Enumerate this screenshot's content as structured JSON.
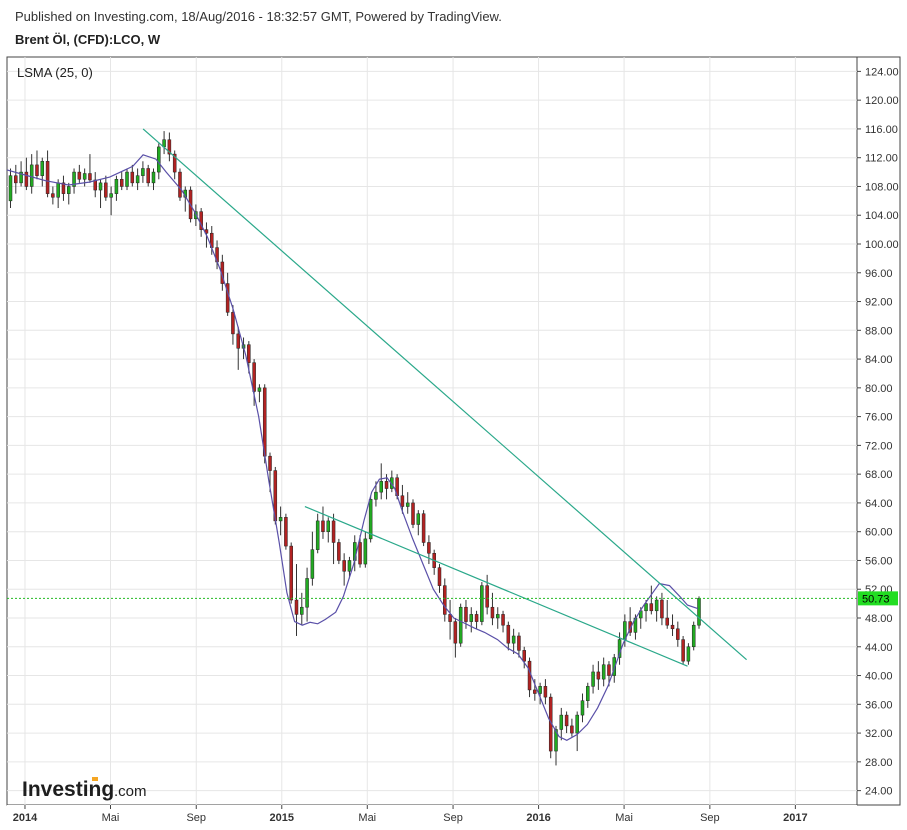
{
  "header": {
    "published": "Published on Investing.com, 18/Aug/2016 - 18:32:57 GMT, Powered by TradingView.",
    "symbol": "Brent Öl, (CFD):LCO, W"
  },
  "indicator_label": "LSMA (25, 0)",
  "logo": {
    "brand": "Investing",
    "domain": ".com"
  },
  "colors": {
    "up": "#22aa22",
    "down": "#b22222",
    "wick": "#333333",
    "lsma": "#5a50a8",
    "trendline": "#2aa88a",
    "price_line": "#22bb22",
    "price_label_bg": "#22dd22",
    "grid": "#e6e6e6",
    "logo_accent": "#f5a623"
  },
  "chart_data": {
    "type": "candlestick",
    "title": "Brent Öl, (CFD):LCO, W",
    "y_axis": {
      "min": 22,
      "max": 126,
      "ticks": [
        24,
        28,
        32,
        36,
        40,
        44,
        48,
        52,
        56,
        60,
        64,
        68,
        72,
        76,
        80,
        84,
        88,
        92,
        96,
        100,
        104,
        108,
        112,
        116,
        120,
        124
      ],
      "labels": [
        "24.00",
        "28.00",
        "32.00",
        "36.00",
        "40.00",
        "44.00",
        "48.00",
        "52.00",
        "56.00",
        "60.00",
        "64.00",
        "68.00",
        "72.00",
        "76.00",
        "80.00",
        "84.00",
        "88.00",
        "92.00",
        "96.00",
        "100.00",
        "104.00",
        "108.00",
        "112.00",
        "116.00",
        "120.00",
        "124.00"
      ]
    },
    "x_axis": {
      "min": 2013.93,
      "max": 2017.24,
      "ticks": [
        {
          "label": "2014",
          "x": 2014.0,
          "bold": true
        },
        {
          "label": "Mai",
          "x": 2014.333,
          "bold": false
        },
        {
          "label": "Sep",
          "x": 2014.667,
          "bold": false
        },
        {
          "label": "2015",
          "x": 2015.0,
          "bold": true
        },
        {
          "label": "Mai",
          "x": 2015.333,
          "bold": false
        },
        {
          "label": "Sep",
          "x": 2015.667,
          "bold": false
        },
        {
          "label": "2016",
          "x": 2016.0,
          "bold": true
        },
        {
          "label": "Mai",
          "x": 2016.333,
          "bold": false
        },
        {
          "label": "Sep",
          "x": 2016.667,
          "bold": false
        },
        {
          "label": "2017",
          "x": 2017.0,
          "bold": true
        }
      ]
    },
    "grid": true,
    "last_price": 50.73,
    "last_price_label": "50.73",
    "candles": [
      {
        "o": 106.0,
        "h": 110.5,
        "l": 105.0,
        "c": 109.5
      },
      {
        "o": 109.5,
        "h": 111.0,
        "l": 107.0,
        "c": 108.5
      },
      {
        "o": 108.5,
        "h": 111.5,
        "l": 108.0,
        "c": 110.0
      },
      {
        "o": 110.0,
        "h": 112.0,
        "l": 107.5,
        "c": 108.0
      },
      {
        "o": 108.0,
        "h": 112.5,
        "l": 107.0,
        "c": 111.0
      },
      {
        "o": 111.0,
        "h": 113.0,
        "l": 109.0,
        "c": 109.5
      },
      {
        "o": 109.5,
        "h": 112.0,
        "l": 108.0,
        "c": 111.5
      },
      {
        "o": 111.5,
        "h": 113.0,
        "l": 106.5,
        "c": 107.0
      },
      {
        "o": 107.0,
        "h": 108.0,
        "l": 105.5,
        "c": 106.5
      },
      {
        "o": 106.5,
        "h": 109.0,
        "l": 105.0,
        "c": 108.5
      },
      {
        "o": 108.5,
        "h": 109.5,
        "l": 106.0,
        "c": 107.0
      },
      {
        "o": 107.0,
        "h": 108.5,
        "l": 105.5,
        "c": 108.0
      },
      {
        "o": 108.0,
        "h": 110.5,
        "l": 107.0,
        "c": 110.0
      },
      {
        "o": 110.0,
        "h": 111.0,
        "l": 108.5,
        "c": 109.0
      },
      {
        "o": 109.0,
        "h": 110.5,
        "l": 108.0,
        "c": 109.8
      },
      {
        "o": 109.8,
        "h": 112.5,
        "l": 108.5,
        "c": 108.9
      },
      {
        "o": 108.9,
        "h": 110.0,
        "l": 106.5,
        "c": 107.5
      },
      {
        "o": 107.5,
        "h": 109.0,
        "l": 105.0,
        "c": 108.5
      },
      {
        "o": 108.5,
        "h": 109.5,
        "l": 106.0,
        "c": 106.5
      },
      {
        "o": 106.5,
        "h": 108.0,
        "l": 104.0,
        "c": 107.0
      },
      {
        "o": 107.0,
        "h": 109.5,
        "l": 106.0,
        "c": 109.0
      },
      {
        "o": 109.0,
        "h": 110.0,
        "l": 107.5,
        "c": 108.0
      },
      {
        "o": 108.0,
        "h": 110.5,
        "l": 107.5,
        "c": 110.0
      },
      {
        "o": 110.0,
        "h": 111.0,
        "l": 108.0,
        "c": 108.5
      },
      {
        "o": 108.5,
        "h": 110.5,
        "l": 107.5,
        "c": 109.5
      },
      {
        "o": 109.5,
        "h": 111.5,
        "l": 108.5,
        "c": 110.5
      },
      {
        "o": 110.5,
        "h": 111.0,
        "l": 108.0,
        "c": 108.5
      },
      {
        "o": 108.5,
        "h": 110.5,
        "l": 107.5,
        "c": 110.0
      },
      {
        "o": 110.0,
        "h": 114.0,
        "l": 109.0,
        "c": 113.5
      },
      {
        "o": 113.5,
        "h": 115.7,
        "l": 112.5,
        "c": 114.5
      },
      {
        "o": 114.5,
        "h": 115.5,
        "l": 111.5,
        "c": 112.5
      },
      {
        "o": 112.5,
        "h": 113.0,
        "l": 109.0,
        "c": 110.0
      },
      {
        "o": 110.0,
        "h": 110.5,
        "l": 106.0,
        "c": 106.5
      },
      {
        "o": 106.5,
        "h": 108.0,
        "l": 104.5,
        "c": 107.5
      },
      {
        "o": 107.5,
        "h": 108.0,
        "l": 103.0,
        "c": 103.5
      },
      {
        "o": 103.5,
        "h": 105.5,
        "l": 102.5,
        "c": 104.5
      },
      {
        "o": 104.5,
        "h": 105.0,
        "l": 101.0,
        "c": 102.0
      },
      {
        "o": 102.0,
        "h": 103.0,
        "l": 99.5,
        "c": 101.5
      },
      {
        "o": 101.5,
        "h": 102.5,
        "l": 98.5,
        "c": 99.5
      },
      {
        "o": 99.5,
        "h": 100.5,
        "l": 96.5,
        "c": 97.5
      },
      {
        "o": 97.5,
        "h": 98.5,
        "l": 93.5,
        "c": 94.5
      },
      {
        "o": 94.5,
        "h": 96.0,
        "l": 90.0,
        "c": 90.5
      },
      {
        "o": 90.5,
        "h": 91.5,
        "l": 86.0,
        "c": 87.5
      },
      {
        "o": 87.5,
        "h": 88.5,
        "l": 82.5,
        "c": 85.5
      },
      {
        "o": 85.5,
        "h": 87.0,
        "l": 84.0,
        "c": 86.0
      },
      {
        "o": 86.0,
        "h": 86.5,
        "l": 82.0,
        "c": 83.5
      },
      {
        "o": 83.5,
        "h": 84.0,
        "l": 77.5,
        "c": 79.5
      },
      {
        "o": 79.5,
        "h": 80.5,
        "l": 78.0,
        "c": 80.0
      },
      {
        "o": 80.0,
        "h": 80.5,
        "l": 69.5,
        "c": 70.5
      },
      {
        "o": 70.5,
        "h": 71.0,
        "l": 65.5,
        "c": 68.5
      },
      {
        "o": 68.5,
        "h": 69.0,
        "l": 61.0,
        "c": 61.5
      },
      {
        "o": 61.5,
        "h": 63.5,
        "l": 59.5,
        "c": 62.0
      },
      {
        "o": 62.0,
        "h": 62.5,
        "l": 57.5,
        "c": 58.0
      },
      {
        "o": 58.0,
        "h": 58.5,
        "l": 50.0,
        "c": 50.5
      },
      {
        "o": 50.5,
        "h": 55.5,
        "l": 45.5,
        "c": 48.5
      },
      {
        "o": 48.5,
        "h": 51.5,
        "l": 47.0,
        "c": 49.5
      },
      {
        "o": 49.5,
        "h": 55.0,
        "l": 47.5,
        "c": 53.5
      },
      {
        "o": 53.5,
        "h": 60.0,
        "l": 52.5,
        "c": 57.5
      },
      {
        "o": 57.5,
        "h": 62.5,
        "l": 57.0,
        "c": 61.5
      },
      {
        "o": 61.5,
        "h": 63.5,
        "l": 59.0,
        "c": 60.0
      },
      {
        "o": 60.0,
        "h": 62.0,
        "l": 58.5,
        "c": 61.5
      },
      {
        "o": 61.5,
        "h": 62.5,
        "l": 55.5,
        "c": 58.5
      },
      {
        "o": 58.5,
        "h": 59.0,
        "l": 55.5,
        "c": 56.0
      },
      {
        "o": 56.0,
        "h": 57.0,
        "l": 52.5,
        "c": 54.5
      },
      {
        "o": 54.5,
        "h": 56.5,
        "l": 53.5,
        "c": 56.0
      },
      {
        "o": 56.0,
        "h": 59.5,
        "l": 54.5,
        "c": 58.5
      },
      {
        "o": 58.5,
        "h": 59.5,
        "l": 55.0,
        "c": 55.5
      },
      {
        "o": 55.5,
        "h": 60.0,
        "l": 55.0,
        "c": 59.0
      },
      {
        "o": 59.0,
        "h": 65.0,
        "l": 58.5,
        "c": 64.5
      },
      {
        "o": 64.5,
        "h": 67.0,
        "l": 63.5,
        "c": 65.5
      },
      {
        "o": 65.5,
        "h": 69.5,
        "l": 64.5,
        "c": 67.0
      },
      {
        "o": 67.0,
        "h": 68.0,
        "l": 64.5,
        "c": 66.0
      },
      {
        "o": 66.0,
        "h": 68.5,
        "l": 65.5,
        "c": 67.5
      },
      {
        "o": 67.5,
        "h": 68.0,
        "l": 64.5,
        "c": 65.0
      },
      {
        "o": 65.0,
        "h": 66.5,
        "l": 62.5,
        "c": 63.5
      },
      {
        "o": 63.5,
        "h": 65.5,
        "l": 62.5,
        "c": 64.0
      },
      {
        "o": 64.0,
        "h": 64.5,
        "l": 60.5,
        "c": 61.0
      },
      {
        "o": 61.0,
        "h": 63.0,
        "l": 59.5,
        "c": 62.5
      },
      {
        "o": 62.5,
        "h": 63.0,
        "l": 58.0,
        "c": 58.5
      },
      {
        "o": 58.5,
        "h": 59.5,
        "l": 55.5,
        "c": 57.0
      },
      {
        "o": 57.0,
        "h": 57.5,
        "l": 54.0,
        "c": 55.0
      },
      {
        "o": 55.0,
        "h": 55.5,
        "l": 51.5,
        "c": 52.5
      },
      {
        "o": 52.5,
        "h": 53.5,
        "l": 47.5,
        "c": 48.5
      },
      {
        "o": 48.5,
        "h": 50.5,
        "l": 45.0,
        "c": 47.5
      },
      {
        "o": 47.5,
        "h": 48.0,
        "l": 42.5,
        "c": 44.5
      },
      {
        "o": 44.5,
        "h": 50.0,
        "l": 44.0,
        "c": 49.5
      },
      {
        "o": 49.5,
        "h": 50.5,
        "l": 46.5,
        "c": 47.5
      },
      {
        "o": 47.5,
        "h": 49.5,
        "l": 46.0,
        "c": 48.5
      },
      {
        "o": 48.5,
        "h": 49.0,
        "l": 46.5,
        "c": 47.5
      },
      {
        "o": 47.5,
        "h": 53.0,
        "l": 47.0,
        "c": 52.5
      },
      {
        "o": 52.5,
        "h": 54.0,
        "l": 48.5,
        "c": 49.5
      },
      {
        "o": 49.5,
        "h": 51.5,
        "l": 47.0,
        "c": 48.0
      },
      {
        "o": 48.0,
        "h": 49.5,
        "l": 46.5,
        "c": 48.5
      },
      {
        "o": 48.5,
        "h": 49.0,
        "l": 46.0,
        "c": 47.0
      },
      {
        "o": 47.0,
        "h": 47.5,
        "l": 43.5,
        "c": 44.5
      },
      {
        "o": 44.5,
        "h": 46.5,
        "l": 43.0,
        "c": 45.5
      },
      {
        "o": 45.5,
        "h": 46.0,
        "l": 42.5,
        "c": 43.5
      },
      {
        "o": 43.5,
        "h": 44.0,
        "l": 41.0,
        "c": 42.0
      },
      {
        "o": 42.0,
        "h": 42.5,
        "l": 37.0,
        "c": 38.0
      },
      {
        "o": 38.0,
        "h": 39.5,
        "l": 36.5,
        "c": 37.5
      },
      {
        "o": 37.5,
        "h": 39.0,
        "l": 36.0,
        "c": 38.5
      },
      {
        "o": 38.5,
        "h": 39.5,
        "l": 36.0,
        "c": 37.0
      },
      {
        "o": 37.0,
        "h": 37.5,
        "l": 28.5,
        "c": 29.5
      },
      {
        "o": 29.5,
        "h": 33.0,
        "l": 27.5,
        "c": 32.5
      },
      {
        "o": 32.5,
        "h": 35.5,
        "l": 31.0,
        "c": 34.5
      },
      {
        "o": 34.5,
        "h": 35.0,
        "l": 32.0,
        "c": 33.0
      },
      {
        "o": 33.0,
        "h": 34.0,
        "l": 31.5,
        "c": 32.0
      },
      {
        "o": 32.0,
        "h": 35.0,
        "l": 29.5,
        "c": 34.5
      },
      {
        "o": 34.5,
        "h": 37.5,
        "l": 33.5,
        "c": 36.5
      },
      {
        "o": 36.5,
        "h": 39.0,
        "l": 35.5,
        "c": 38.5
      },
      {
        "o": 38.5,
        "h": 41.5,
        "l": 37.5,
        "c": 40.5
      },
      {
        "o": 40.5,
        "h": 42.0,
        "l": 38.0,
        "c": 39.5
      },
      {
        "o": 39.5,
        "h": 42.5,
        "l": 38.5,
        "c": 41.5
      },
      {
        "o": 41.5,
        "h": 42.0,
        "l": 38.5,
        "c": 40.0
      },
      {
        "o": 40.0,
        "h": 43.0,
        "l": 39.0,
        "c": 42.5
      },
      {
        "o": 42.5,
        "h": 46.0,
        "l": 41.5,
        "c": 45.0
      },
      {
        "o": 45.0,
        "h": 48.5,
        "l": 44.0,
        "c": 47.5
      },
      {
        "o": 47.5,
        "h": 49.5,
        "l": 45.5,
        "c": 46.0
      },
      {
        "o": 46.0,
        "h": 48.5,
        "l": 45.0,
        "c": 48.0
      },
      {
        "o": 48.0,
        "h": 49.5,
        "l": 46.5,
        "c": 49.0
      },
      {
        "o": 49.0,
        "h": 50.5,
        "l": 47.5,
        "c": 50.0
      },
      {
        "o": 50.0,
        "h": 52.5,
        "l": 48.5,
        "c": 49.0
      },
      {
        "o": 49.0,
        "h": 51.0,
        "l": 47.5,
        "c": 50.5
      },
      {
        "o": 50.5,
        "h": 51.5,
        "l": 47.0,
        "c": 48.0
      },
      {
        "o": 48.0,
        "h": 50.5,
        "l": 46.5,
        "c": 47.0
      },
      {
        "o": 47.0,
        "h": 48.5,
        "l": 45.5,
        "c": 46.5
      },
      {
        "o": 46.5,
        "h": 47.5,
        "l": 44.0,
        "c": 45.0
      },
      {
        "o": 45.0,
        "h": 45.5,
        "l": 41.5,
        "c": 42.0
      },
      {
        "o": 42.0,
        "h": 44.5,
        "l": 41.5,
        "c": 44.0
      },
      {
        "o": 44.0,
        "h": 47.5,
        "l": 43.5,
        "c": 47.0
      },
      {
        "o": 47.0,
        "h": 51.0,
        "l": 46.5,
        "c": 50.73
      }
    ],
    "lsma": [
      {
        "x": 2013.93,
        "y": 110.3
      },
      {
        "x": 2014.0,
        "y": 109.6
      },
      {
        "x": 2014.08,
        "y": 108.8
      },
      {
        "x": 2014.17,
        "y": 108.2
      },
      {
        "x": 2014.25,
        "y": 108.6
      },
      {
        "x": 2014.33,
        "y": 109.3
      },
      {
        "x": 2014.42,
        "y": 110.8
      },
      {
        "x": 2014.46,
        "y": 112.4
      },
      {
        "x": 2014.51,
        "y": 111.8
      },
      {
        "x": 2014.55,
        "y": 110.0
      },
      {
        "x": 2014.61,
        "y": 107.5
      },
      {
        "x": 2014.66,
        "y": 104.5
      },
      {
        "x": 2014.71,
        "y": 101.0
      },
      {
        "x": 2014.76,
        "y": 96.5
      },
      {
        "x": 2014.81,
        "y": 91.0
      },
      {
        "x": 2014.86,
        "y": 84.5
      },
      {
        "x": 2014.91,
        "y": 76.0
      },
      {
        "x": 2014.95,
        "y": 67.0
      },
      {
        "x": 2014.99,
        "y": 58.5
      },
      {
        "x": 2015.02,
        "y": 51.5
      },
      {
        "x": 2015.05,
        "y": 47.5
      },
      {
        "x": 2015.08,
        "y": 47.0
      },
      {
        "x": 2015.11,
        "y": 47.4
      },
      {
        "x": 2015.14,
        "y": 47.2
      },
      {
        "x": 2015.17,
        "y": 47.8
      },
      {
        "x": 2015.21,
        "y": 48.8
      },
      {
        "x": 2015.24,
        "y": 51.0
      },
      {
        "x": 2015.28,
        "y": 55.5
      },
      {
        "x": 2015.32,
        "y": 61.5
      },
      {
        "x": 2015.35,
        "y": 65.5
      },
      {
        "x": 2015.38,
        "y": 67.3
      },
      {
        "x": 2015.41,
        "y": 67.5
      },
      {
        "x": 2015.44,
        "y": 66.0
      },
      {
        "x": 2015.47,
        "y": 62.8
      },
      {
        "x": 2015.51,
        "y": 59.0
      },
      {
        "x": 2015.55,
        "y": 55.5
      },
      {
        "x": 2015.59,
        "y": 52.0
      },
      {
        "x": 2015.63,
        "y": 49.8
      },
      {
        "x": 2015.67,
        "y": 48.0
      },
      {
        "x": 2015.71,
        "y": 47.3
      },
      {
        "x": 2015.75,
        "y": 46.6
      },
      {
        "x": 2015.79,
        "y": 46.0
      },
      {
        "x": 2015.84,
        "y": 45.0
      },
      {
        "x": 2015.88,
        "y": 43.8
      },
      {
        "x": 2015.92,
        "y": 43.0
      },
      {
        "x": 2015.96,
        "y": 41.0
      },
      {
        "x": 2016.0,
        "y": 37.5
      },
      {
        "x": 2016.04,
        "y": 34.0
      },
      {
        "x": 2016.08,
        "y": 31.5
      },
      {
        "x": 2016.11,
        "y": 31.0
      },
      {
        "x": 2016.15,
        "y": 31.8
      },
      {
        "x": 2016.19,
        "y": 33.2
      },
      {
        "x": 2016.23,
        "y": 35.5
      },
      {
        "x": 2016.27,
        "y": 38.5
      },
      {
        "x": 2016.3,
        "y": 41.5
      },
      {
        "x": 2016.33,
        "y": 44.5
      },
      {
        "x": 2016.37,
        "y": 47.5
      },
      {
        "x": 2016.41,
        "y": 49.8
      },
      {
        "x": 2016.44,
        "y": 51.3
      },
      {
        "x": 2016.47,
        "y": 52.8
      },
      {
        "x": 2016.51,
        "y": 52.5
      },
      {
        "x": 2016.55,
        "y": 51.0
      },
      {
        "x": 2016.58,
        "y": 49.8
      },
      {
        "x": 2016.62,
        "y": 49.3
      }
    ],
    "trendlines": [
      {
        "x1": 2014.46,
        "y1": 116.0,
        "x2": 2016.81,
        "y2": 42.2
      },
      {
        "x1": 2015.09,
        "y1": 63.5,
        "x2": 2016.58,
        "y2": 41.3
      }
    ]
  }
}
